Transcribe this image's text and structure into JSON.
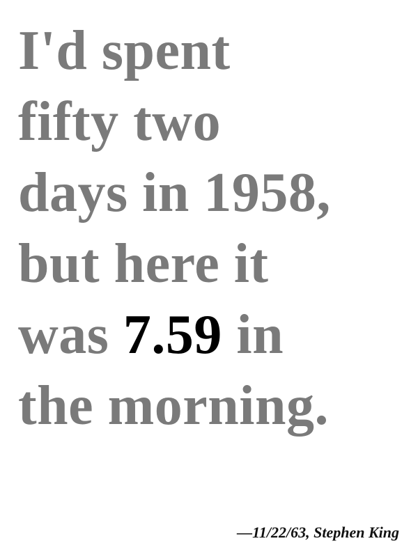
{
  "quote": {
    "line1": "I'd spent",
    "line2": "fifty two",
    "line3": "days in 1958,",
    "line4": "but here it",
    "line5_before": "was ",
    "line5_time": "7.59",
    "line5_after": " in",
    "line6": "the morning."
  },
  "attribution": "—11/22/63, Stephen King",
  "colors": {
    "quote_text": "#7a7a7a",
    "highlight_text": "#000000",
    "attribution_text": "#111111",
    "background": "#ffffff"
  }
}
